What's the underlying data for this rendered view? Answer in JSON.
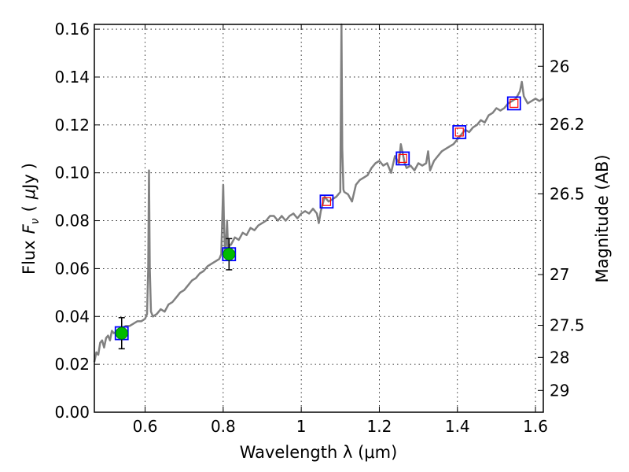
{
  "chart_data": {
    "type": "line",
    "xlabel": "Wavelength  λ (μm)",
    "ylabel": "Flux  F_ν  ( μJy )",
    "ylabel_parts": {
      "prefix": "Flux",
      "symbol": "F",
      "subscript": "ν",
      "unit_open": "(",
      "unit_mu": "μ",
      "unit": "Jy",
      "unit_close": ")"
    },
    "y2label": "Magnitude (AB)",
    "xlim": [
      0.47,
      1.62
    ],
    "ylim": [
      0.0,
      0.162
    ],
    "grid": true,
    "x_ticks": [
      {
        "value": 0.6,
        "label": "0.6"
      },
      {
        "value": 0.8,
        "label": "0.8"
      },
      {
        "value": 1.0,
        "label": "1"
      },
      {
        "value": 1.2,
        "label": "1.2"
      },
      {
        "value": 1.4,
        "label": "1.4"
      },
      {
        "value": 1.6,
        "label": "1.6"
      }
    ],
    "y_ticks": [
      {
        "value": 0.0,
        "label": "0.00"
      },
      {
        "value": 0.02,
        "label": "0.02"
      },
      {
        "value": 0.04,
        "label": "0.04"
      },
      {
        "value": 0.06,
        "label": "0.06"
      },
      {
        "value": 0.08,
        "label": "0.08"
      },
      {
        "value": 0.1,
        "label": "0.10"
      },
      {
        "value": 0.12,
        "label": "0.12"
      },
      {
        "value": 0.14,
        "label": "0.14"
      },
      {
        "value": 0.16,
        "label": "0.16"
      }
    ],
    "y2_ticks": [
      {
        "label": "26",
        "flux": 0.1445
      },
      {
        "label": "26.2",
        "flux": 0.1202
      },
      {
        "label": "26.5",
        "flux": 0.0912
      },
      {
        "label": "27",
        "flux": 0.0575
      },
      {
        "label": "27.5",
        "flux": 0.0363
      },
      {
        "label": "28",
        "flux": 0.0229
      },
      {
        "label": "29",
        "flux": 0.0091
      }
    ],
    "spectrum": {
      "color": "#808080",
      "x": [
        0.47,
        0.475,
        0.48,
        0.485,
        0.49,
        0.495,
        0.5,
        0.505,
        0.51,
        0.515,
        0.52,
        0.53,
        0.54,
        0.55,
        0.56,
        0.57,
        0.58,
        0.59,
        0.6,
        0.605,
        0.608,
        0.61,
        0.612,
        0.615,
        0.62,
        0.63,
        0.64,
        0.65,
        0.66,
        0.67,
        0.68,
        0.69,
        0.7,
        0.71,
        0.72,
        0.73,
        0.74,
        0.75,
        0.76,
        0.77,
        0.78,
        0.79,
        0.795,
        0.8,
        0.802,
        0.805,
        0.808,
        0.81,
        0.813,
        0.815,
        0.818,
        0.82,
        0.83,
        0.84,
        0.85,
        0.86,
        0.87,
        0.88,
        0.89,
        0.9,
        0.91,
        0.92,
        0.93,
        0.94,
        0.95,
        0.96,
        0.97,
        0.98,
        0.99,
        1.0,
        1.01,
        1.02,
        1.03,
        1.04,
        1.045,
        1.05,
        1.06,
        1.07,
        1.08,
        1.09,
        1.1,
        1.103,
        1.105,
        1.108,
        1.11,
        1.12,
        1.13,
        1.14,
        1.15,
        1.16,
        1.17,
        1.18,
        1.19,
        1.2,
        1.21,
        1.22,
        1.23,
        1.24,
        1.25,
        1.255,
        1.26,
        1.265,
        1.27,
        1.28,
        1.29,
        1.3,
        1.31,
        1.32,
        1.325,
        1.33,
        1.335,
        1.34,
        1.35,
        1.36,
        1.37,
        1.38,
        1.39,
        1.4,
        1.41,
        1.42,
        1.43,
        1.44,
        1.45,
        1.46,
        1.47,
        1.48,
        1.49,
        1.5,
        1.51,
        1.52,
        1.53,
        1.54,
        1.55,
        1.56,
        1.565,
        1.57,
        1.58,
        1.59,
        1.6,
        1.61,
        1.62
      ],
      "y": [
        0.021,
        0.025,
        0.024,
        0.029,
        0.03,
        0.027,
        0.031,
        0.032,
        0.03,
        0.034,
        0.033,
        0.034,
        0.035,
        0.036,
        0.036,
        0.037,
        0.038,
        0.038,
        0.039,
        0.041,
        0.06,
        0.101,
        0.06,
        0.042,
        0.04,
        0.041,
        0.043,
        0.042,
        0.045,
        0.046,
        0.048,
        0.05,
        0.051,
        0.053,
        0.055,
        0.056,
        0.058,
        0.059,
        0.061,
        0.062,
        0.063,
        0.064,
        0.066,
        0.095,
        0.08,
        0.066,
        0.072,
        0.08,
        0.066,
        0.069,
        0.07,
        0.07,
        0.073,
        0.072,
        0.075,
        0.074,
        0.077,
        0.076,
        0.078,
        0.079,
        0.08,
        0.082,
        0.082,
        0.08,
        0.082,
        0.08,
        0.082,
        0.083,
        0.081,
        0.083,
        0.084,
        0.083,
        0.085,
        0.083,
        0.079,
        0.084,
        0.09,
        0.088,
        0.089,
        0.09,
        0.092,
        0.163,
        0.11,
        0.093,
        0.092,
        0.091,
        0.088,
        0.095,
        0.097,
        0.098,
        0.099,
        0.102,
        0.104,
        0.105,
        0.103,
        0.104,
        0.1,
        0.107,
        0.104,
        0.112,
        0.108,
        0.104,
        0.102,
        0.103,
        0.101,
        0.104,
        0.103,
        0.104,
        0.109,
        0.101,
        0.103,
        0.105,
        0.107,
        0.109,
        0.11,
        0.111,
        0.112,
        0.114,
        0.116,
        0.118,
        0.117,
        0.119,
        0.12,
        0.122,
        0.121,
        0.124,
        0.125,
        0.127,
        0.126,
        0.127,
        0.129,
        0.13,
        0.131,
        0.134,
        0.138,
        0.132,
        0.129,
        0.13,
        0.131,
        0.13,
        0.131
      ]
    },
    "filled_squares": {
      "color": "#0000ff",
      "x": [
        0.54,
        0.815,
        1.065,
        1.26,
        1.405,
        1.545
      ],
      "y": [
        0.033,
        0.066,
        0.088,
        0.106,
        0.117,
        0.129
      ]
    },
    "model_squares": {
      "color": "#ff0000",
      "x": [
        1.065,
        1.26,
        1.405,
        1.545
      ],
      "y": [
        0.088,
        0.106,
        0.117,
        0.129
      ]
    },
    "observed": {
      "color": "#00bb00",
      "x": [
        0.54,
        0.815
      ],
      "y": [
        0.033,
        0.066
      ],
      "yerr": [
        0.0065,
        0.0065
      ]
    }
  }
}
